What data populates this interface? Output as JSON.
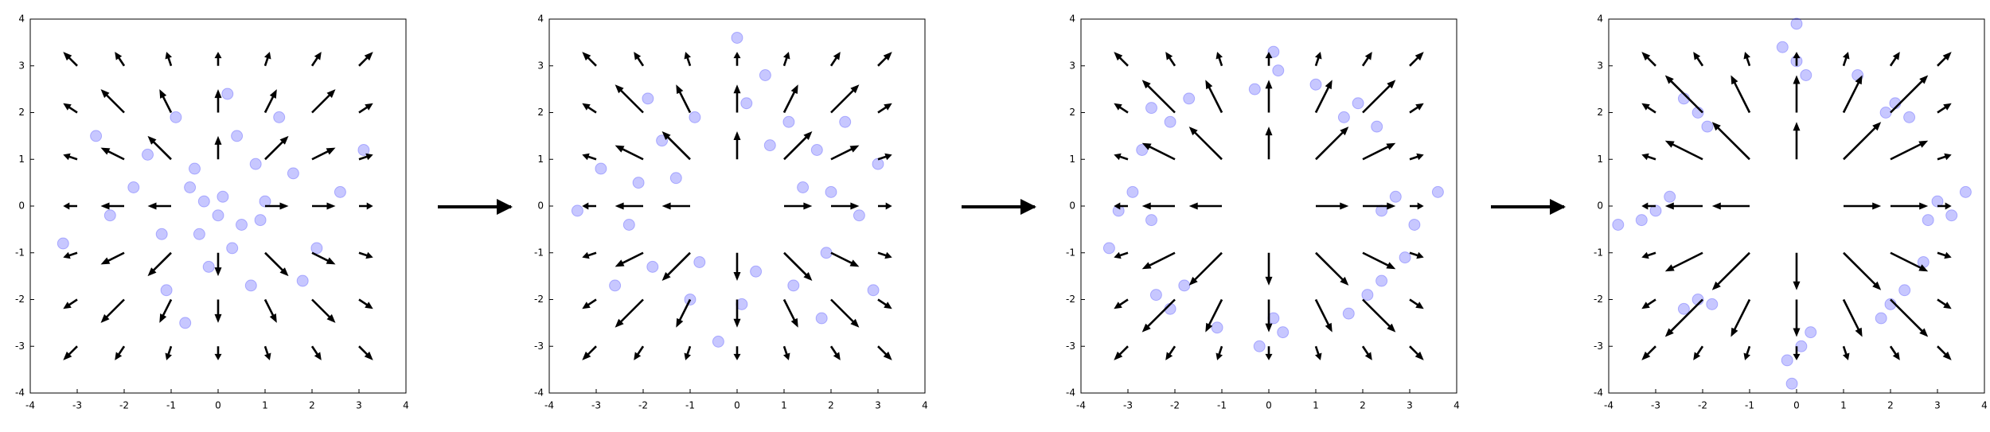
{
  "chart_data": [
    {
      "type": "scatter",
      "color": "#0000ff",
      "x": [
        0.1,
        -0.5,
        0.9,
        -1.2,
        0.4,
        -0.2,
        1.6,
        -1.8,
        0.7,
        -0.9,
        2.1,
        -0.3,
        0.5,
        -1.1,
        1.3,
        -2.3,
        0.2,
        2.6,
        -0.7,
        1.0,
        -0.6,
        0.3,
        -1.5,
        1.8,
        -2.6,
        0.0,
        3.1,
        -3.3,
        0.8,
        -0.4
      ],
      "y": [
        0.2,
        0.8,
        -0.3,
        -0.6,
        1.5,
        -1.3,
        0.7,
        0.4,
        -1.7,
        1.9,
        -0.9,
        0.1,
        -0.4,
        -1.8,
        1.9,
        -0.2,
        2.4,
        0.3,
        -2.5,
        0.1,
        0.4,
        -0.9,
        1.1,
        -1.6,
        1.5,
        -0.2,
        1.2,
        -0.8,
        0.9,
        -0.6
      ],
      "xlim": [
        -4,
        4
      ],
      "ylim": [
        -4,
        4
      ],
      "xticks": [
        -4,
        -3,
        -2,
        -1,
        0,
        1,
        2,
        3,
        4
      ],
      "yticks": [
        -4,
        -3,
        -2,
        -1,
        0,
        1,
        2,
        3,
        4
      ],
      "quiver": {
        "color": "#000000",
        "x": [
          -3,
          -2,
          -1,
          0,
          1,
          2,
          3,
          -3,
          -2,
          -1,
          0,
          1,
          2,
          3,
          -3,
          -2,
          -1,
          0,
          1,
          2,
          3,
          -3,
          -2,
          -1,
          0,
          1,
          2,
          3,
          -3,
          -2,
          -1,
          0,
          1,
          2,
          3,
          -3,
          -2,
          -1,
          0,
          1,
          2,
          3,
          -3,
          -2,
          -1,
          0,
          1,
          2,
          3
        ],
        "y": [
          3,
          3,
          3,
          3,
          3,
          3,
          3,
          2,
          2,
          2,
          2,
          2,
          2,
          2,
          1,
          1,
          1,
          1,
          1,
          1,
          1,
          0,
          0,
          0,
          0,
          0,
          0,
          0,
          -1,
          -1,
          -1,
          -1,
          -1,
          -1,
          -1,
          -2,
          -2,
          -2,
          -2,
          -2,
          -2,
          -2,
          -3,
          -3,
          -3,
          -3,
          -3,
          -3,
          -3
        ],
        "u": [
          -0.3,
          -0.2,
          -0.1,
          0,
          0.1,
          0.2,
          0.3,
          -0.3,
          -0.5,
          -0.25,
          0,
          0.25,
          0.5,
          0.3,
          -0.3,
          -0.5,
          -0.5,
          0,
          0.5,
          0.5,
          0.3,
          -0.3,
          -0.5,
          -0.5,
          0,
          0.5,
          0.5,
          0.3,
          -0.3,
          -0.5,
          -0.5,
          0,
          0.5,
          0.5,
          0.3,
          -0.3,
          -0.5,
          -0.25,
          0,
          0.25,
          0.5,
          0.3,
          -0.3,
          -0.2,
          -0.1,
          0,
          0.1,
          0.2,
          0.3
        ],
        "v": [
          0.3,
          0.3,
          0.3,
          0.3,
          0.3,
          0.3,
          0.3,
          0.2,
          0.5,
          0.5,
          0.5,
          0.5,
          0.5,
          0.2,
          0.1,
          0.25,
          0.5,
          0.5,
          0.5,
          0.25,
          0.1,
          0,
          0,
          0,
          0,
          0,
          0,
          0,
          -0.1,
          -0.25,
          -0.5,
          -0.5,
          -0.5,
          -0.25,
          -0.1,
          -0.2,
          -0.5,
          -0.5,
          -0.5,
          -0.5,
          -0.5,
          -0.2,
          -0.3,
          -0.3,
          -0.3,
          -0.3,
          -0.3,
          -0.3,
          -0.3
        ]
      }
    },
    {
      "type": "scatter",
      "color": "#0000ff",
      "x": [
        2.0,
        1.7,
        1.1,
        0.2,
        -0.9,
        -1.6,
        -2.1,
        -2.3,
        -1.8,
        -1.0,
        0.1,
        1.2,
        1.9,
        2.6,
        2.3,
        0.6,
        -1.9,
        -2.9,
        -2.6,
        -0.4,
        1.8,
        1.4,
        -1.3,
        0.4,
        -0.8,
        0.7,
        3.0,
        -3.4,
        0.0,
        2.9
      ],
      "y": [
        0.3,
        1.2,
        1.8,
        2.2,
        1.9,
        1.4,
        0.5,
        -0.4,
        -1.3,
        -2.0,
        -2.1,
        -1.7,
        -1.0,
        -0.2,
        1.8,
        2.8,
        2.3,
        0.8,
        -1.7,
        -2.9,
        -2.4,
        0.4,
        0.6,
        -1.4,
        -1.2,
        1.3,
        0.9,
        -0.1,
        3.6,
        -1.8
      ],
      "xlim": [
        -4,
        4
      ],
      "ylim": [
        -4,
        4
      ],
      "xticks": [
        -4,
        -3,
        -2,
        -1,
        0,
        1,
        2,
        3,
        4
      ],
      "yticks": [
        -4,
        -3,
        -2,
        -1,
        0,
        1,
        2,
        3,
        4
      ],
      "quiver": {
        "color": "#000000",
        "x": [
          -3,
          -2,
          -1,
          0,
          1,
          2,
          3,
          -3,
          -2,
          -1,
          0,
          1,
          2,
          3,
          -3,
          -2,
          -1,
          0,
          1,
          2,
          3,
          -3,
          -2,
          -1,
          0,
          1,
          2,
          3,
          -3,
          -2,
          -1,
          0,
          1,
          2,
          3,
          -3,
          -2,
          -1,
          0,
          1,
          2,
          3,
          -3,
          -2,
          -1,
          0,
          1,
          2,
          3
        ],
        "y": [
          3,
          3,
          3,
          3,
          3,
          3,
          3,
          2,
          2,
          2,
          2,
          2,
          2,
          2,
          1,
          1,
          1,
          1,
          1,
          1,
          1,
          0,
          0,
          0,
          0,
          0,
          0,
          0,
          -1,
          -1,
          -1,
          -1,
          -1,
          -1,
          -1,
          -2,
          -2,
          -2,
          -2,
          -2,
          -2,
          -2,
          -3,
          -3,
          -3,
          -3,
          -3,
          -3,
          -3
        ],
        "u": [
          -0.3,
          -0.2,
          -0.1,
          0,
          0.1,
          0.2,
          0.3,
          -0.3,
          -0.6,
          -0.3,
          0,
          0.3,
          0.6,
          0.3,
          -0.3,
          -0.6,
          -0.6,
          0,
          0.6,
          0.6,
          0.3,
          -0.3,
          -0.6,
          -0.6,
          0,
          0.6,
          0.6,
          0.3,
          -0.3,
          -0.6,
          -0.6,
          0,
          0.6,
          0.6,
          0.3,
          -0.3,
          -0.6,
          -0.3,
          0,
          0.3,
          0.6,
          0.3,
          -0.3,
          -0.2,
          -0.1,
          0,
          0.1,
          0.2,
          0.3
        ],
        "v": [
          0.3,
          0.3,
          0.3,
          0.3,
          0.3,
          0.3,
          0.3,
          0.2,
          0.6,
          0.6,
          0.6,
          0.6,
          0.6,
          0.2,
          0.1,
          0.3,
          0.6,
          0.6,
          0.6,
          0.3,
          0.1,
          0,
          0,
          0,
          0,
          0,
          0,
          0,
          -0.1,
          -0.3,
          -0.6,
          -0.6,
          -0.6,
          -0.3,
          -0.1,
          -0.2,
          -0.6,
          -0.6,
          -0.6,
          -0.6,
          -0.6,
          -0.2,
          -0.3,
          -0.3,
          -0.3,
          -0.3,
          -0.3,
          -0.3,
          -0.3
        ]
      }
    },
    {
      "type": "scatter",
      "color": "#0000ff",
      "x": [
        2.7,
        3.1,
        2.4,
        1.9,
        2.3,
        1.6,
        0.2,
        -0.3,
        0.1,
        -2.1,
        -1.7,
        -2.5,
        -2.9,
        -2.5,
        -3.2,
        -2.1,
        -1.8,
        -2.4,
        0.3,
        -0.2,
        0.1,
        2.1,
        1.7,
        2.4,
        1.0,
        -2.7,
        -1.1,
        2.9,
        3.6,
        -3.4
      ],
      "y": [
        0.2,
        -0.4,
        -0.1,
        2.2,
        1.7,
        1.9,
        2.9,
        2.5,
        3.3,
        1.8,
        2.3,
        2.1,
        0.3,
        -0.3,
        -0.1,
        -2.2,
        -1.7,
        -1.9,
        -2.7,
        -3.0,
        -2.4,
        -1.9,
        -2.3,
        -1.6,
        2.6,
        1.2,
        -2.6,
        -1.1,
        0.3,
        -0.9
      ],
      "xlim": [
        -4,
        4
      ],
      "ylim": [
        -4,
        4
      ],
      "xticks": [
        -4,
        -3,
        -2,
        -1,
        0,
        1,
        2,
        3,
        4
      ],
      "yticks": [
        -4,
        -3,
        -2,
        -1,
        0,
        1,
        2,
        3,
        4
      ],
      "quiver": {
        "color": "#000000",
        "x": [
          -3,
          -2,
          -1,
          0,
          1,
          2,
          3,
          -3,
          -2,
          -1,
          0,
          1,
          2,
          3,
          -3,
          -2,
          -1,
          0,
          1,
          2,
          3,
          -3,
          -2,
          -1,
          0,
          1,
          2,
          3,
          -3,
          -2,
          -1,
          0,
          1,
          2,
          3,
          -3,
          -2,
          -1,
          0,
          1,
          2,
          3,
          -3,
          -2,
          -1,
          0,
          1,
          2,
          3
        ],
        "y": [
          3,
          3,
          3,
          3,
          3,
          3,
          3,
          2,
          2,
          2,
          2,
          2,
          2,
          2,
          1,
          1,
          1,
          1,
          1,
          1,
          1,
          0,
          0,
          0,
          0,
          0,
          0,
          0,
          -1,
          -1,
          -1,
          -1,
          -1,
          -1,
          -1,
          -2,
          -2,
          -2,
          -2,
          -2,
          -2,
          -2,
          -3,
          -3,
          -3,
          -3,
          -3,
          -3,
          -3
        ],
        "u": [
          -0.3,
          -0.2,
          -0.1,
          0,
          0.1,
          0.2,
          0.3,
          -0.3,
          -0.7,
          -0.35,
          0,
          0.35,
          0.7,
          0.3,
          -0.3,
          -0.7,
          -0.7,
          0,
          0.7,
          0.7,
          0.3,
          -0.3,
          -0.7,
          -0.7,
          0,
          0.7,
          0.7,
          0.3,
          -0.3,
          -0.7,
          -0.7,
          0,
          0.7,
          0.7,
          0.3,
          -0.3,
          -0.7,
          -0.35,
          0,
          0.35,
          0.7,
          0.3,
          -0.3,
          -0.2,
          -0.1,
          0,
          0.1,
          0.2,
          0.3
        ],
        "v": [
          0.3,
          0.3,
          0.3,
          0.3,
          0.3,
          0.3,
          0.3,
          0.2,
          0.7,
          0.7,
          0.7,
          0.7,
          0.7,
          0.2,
          0.1,
          0.35,
          0.7,
          0.7,
          0.7,
          0.35,
          0.1,
          0,
          0,
          0,
          0,
          0,
          0,
          0,
          -0.1,
          -0.35,
          -0.7,
          -0.7,
          -0.7,
          -0.35,
          -0.1,
          -0.2,
          -0.7,
          -0.7,
          -0.7,
          -0.7,
          -0.7,
          -0.2,
          -0.3,
          -0.3,
          -0.3,
          -0.3,
          -0.3,
          -0.3,
          -0.3
        ]
      }
    },
    {
      "type": "scatter",
      "color": "#0000ff",
      "x": [
        3.0,
        3.3,
        2.8,
        2.1,
        2.4,
        1.9,
        0.0,
        -0.3,
        0.2,
        -2.1,
        -2.4,
        -1.9,
        -3.0,
        -2.7,
        -3.3,
        -2.1,
        -2.4,
        -1.8,
        0.1,
        -0.2,
        0.3,
        2.0,
        2.3,
        1.8,
        3.6,
        -3.8,
        0.0,
        -0.1,
        1.3,
        2.7
      ],
      "y": [
        0.1,
        -0.2,
        -0.3,
        2.2,
        1.9,
        2.0,
        3.1,
        3.4,
        2.8,
        2.0,
        2.3,
        1.7,
        -0.1,
        0.2,
        -0.3,
        -2.0,
        -2.2,
        -2.1,
        -3.0,
        -3.3,
        -2.7,
        -2.1,
        -1.8,
        -2.4,
        0.3,
        -0.4,
        3.9,
        -3.8,
        2.8,
        -1.2
      ],
      "xlim": [
        -4,
        4
      ],
      "ylim": [
        -4,
        4
      ],
      "xticks": [
        -4,
        -3,
        -2,
        -1,
        0,
        1,
        2,
        3,
        4
      ],
      "yticks": [
        -4,
        -3,
        -2,
        -1,
        0,
        1,
        2,
        3,
        4
      ],
      "quiver": {
        "color": "#000000",
        "x": [
          -3,
          -2,
          -1,
          0,
          1,
          2,
          3,
          -3,
          -2,
          -1,
          0,
          1,
          2,
          3,
          -3,
          -2,
          -1,
          0,
          1,
          2,
          3,
          -3,
          -2,
          -1,
          0,
          1,
          2,
          3,
          -3,
          -2,
          -1,
          0,
          1,
          2,
          3,
          -3,
          -2,
          -1,
          0,
          1,
          2,
          3,
          -3,
          -2,
          -1,
          0,
          1,
          2,
          3
        ],
        "y": [
          3,
          3,
          3,
          3,
          3,
          3,
          3,
          2,
          2,
          2,
          2,
          2,
          2,
          2,
          1,
          1,
          1,
          1,
          1,
          1,
          1,
          0,
          0,
          0,
          0,
          0,
          0,
          0,
          -1,
          -1,
          -1,
          -1,
          -1,
          -1,
          -1,
          -2,
          -2,
          -2,
          -2,
          -2,
          -2,
          -2,
          -3,
          -3,
          -3,
          -3,
          -3,
          -3,
          -3
        ],
        "u": [
          -0.3,
          -0.2,
          -0.1,
          0,
          0.1,
          0.2,
          0.3,
          -0.3,
          -0.8,
          -0.4,
          0,
          0.4,
          0.8,
          0.3,
          -0.3,
          -0.8,
          -0.8,
          0,
          0.8,
          0.8,
          0.3,
          -0.3,
          -0.8,
          -0.8,
          0,
          0.8,
          0.8,
          0.3,
          -0.3,
          -0.8,
          -0.8,
          0,
          0.8,
          0.8,
          0.3,
          -0.3,
          -0.8,
          -0.4,
          0,
          0.4,
          0.8,
          0.3,
          -0.3,
          -0.2,
          -0.1,
          0,
          0.1,
          0.2,
          0.3
        ],
        "v": [
          0.3,
          0.3,
          0.3,
          0.3,
          0.3,
          0.3,
          0.3,
          0.2,
          0.8,
          0.8,
          0.8,
          0.8,
          0.8,
          0.2,
          0.1,
          0.4,
          0.8,
          0.8,
          0.8,
          0.4,
          0.1,
          0,
          0,
          0,
          0,
          0,
          0,
          0,
          -0.1,
          -0.4,
          -0.8,
          -0.8,
          -0.8,
          -0.4,
          -0.1,
          -0.2,
          -0.8,
          -0.8,
          -0.8,
          -0.8,
          -0.8,
          -0.2,
          -0.3,
          -0.3,
          -0.3,
          -0.3,
          -0.3,
          -0.3,
          -0.3
        ]
      }
    }
  ]
}
